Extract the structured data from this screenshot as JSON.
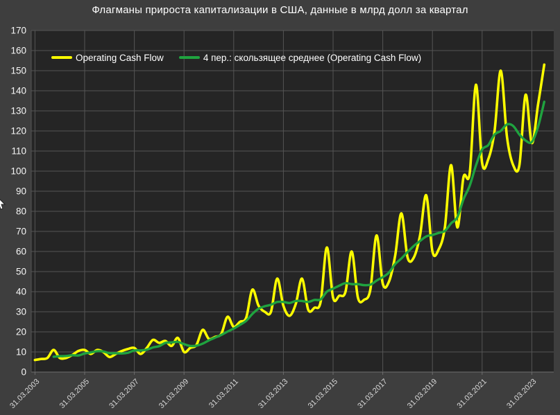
{
  "title": "Флагманы прироста капитализации в США, данные в млрд долл за квартал",
  "legend": [
    {
      "label": "Operating Cash Flow",
      "color": "#FCFC00"
    },
    {
      "label": "4 пер.: скользящее среднее (Operating Cash Flow)",
      "color": "#1FA33F"
    }
  ],
  "colors": {
    "page_background": "#3E3E3E",
    "plot_background": "#252525",
    "gridline": "#555555",
    "axis_line": "#6E6E6E",
    "title_text": "#FFFFFF",
    "y_tick_text": "#F5F5F5",
    "x_tick_text": "#D9D9D9",
    "series_yellow": "#FCFC00",
    "series_green": "#1FA33F"
  },
  "chart_data": {
    "type": "line",
    "title": "Флагманы прироста капитализации в США, данные в млрд долл за квартал",
    "xlabel": "",
    "ylabel": "",
    "ylim": [
      0,
      170
    ],
    "y_tick_step": 10,
    "grid": true,
    "smooth": true,
    "legend_position": "top-left-inside",
    "x_tick_labels": [
      "31.03.2003",
      "31.03.2005",
      "31.03.2007",
      "31.03.2009",
      "31.03.2011",
      "31.03.2013",
      "31.03.2015",
      "31.03.2017",
      "31.03.2019",
      "31.03.2021",
      "31.03.2023"
    ],
    "x_tick_every": 8,
    "x": [
      "31.03.2003",
      "30.06.2003",
      "30.09.2003",
      "31.12.2003",
      "31.03.2004",
      "30.06.2004",
      "30.09.2004",
      "31.12.2004",
      "31.03.2005",
      "30.06.2005",
      "30.09.2005",
      "31.12.2005",
      "31.03.2006",
      "30.06.2006",
      "30.09.2006",
      "31.12.2006",
      "31.03.2007",
      "30.06.2007",
      "30.09.2007",
      "31.12.2007",
      "31.03.2008",
      "30.06.2008",
      "30.09.2008",
      "31.12.2008",
      "31.03.2009",
      "30.06.2009",
      "30.09.2009",
      "31.12.2009",
      "31.03.2010",
      "30.06.2010",
      "30.09.2010",
      "31.12.2010",
      "31.03.2011",
      "30.06.2011",
      "30.09.2011",
      "31.12.2011",
      "31.03.2012",
      "30.06.2012",
      "30.09.2012",
      "31.12.2012",
      "31.03.2013",
      "30.06.2013",
      "30.09.2013",
      "31.12.2013",
      "31.03.2014",
      "30.06.2014",
      "30.09.2014",
      "31.12.2014",
      "31.03.2015",
      "30.06.2015",
      "30.09.2015",
      "31.12.2015",
      "31.03.2016",
      "30.06.2016",
      "30.09.2016",
      "31.12.2016",
      "31.03.2017",
      "30.06.2017",
      "30.09.2017",
      "31.12.2017",
      "31.03.2018",
      "30.06.2018",
      "30.09.2018",
      "31.12.2018",
      "31.03.2019",
      "30.06.2019",
      "30.09.2019",
      "31.12.2019",
      "31.03.2020",
      "30.06.2020",
      "30.09.2020",
      "31.12.2020",
      "31.03.2021",
      "30.06.2021",
      "30.09.2021",
      "31.12.2021",
      "31.03.2022",
      "30.06.2022",
      "30.09.2022",
      "31.12.2022",
      "31.03.2023",
      "30.06.2023",
      "30.09.2023"
    ],
    "series": [
      {
        "name": "Operating Cash Flow",
        "color": "#FCFC00",
        "line_width": 3.6,
        "start_index": 0,
        "values": [
          6,
          6.5,
          7,
          11,
          7,
          7,
          8.5,
          10.5,
          11,
          9,
          11,
          10,
          7.5,
          9,
          10.5,
          11.5,
          12,
          9,
          12,
          16,
          14.5,
          15.5,
          13,
          17,
          10,
          12,
          13.5,
          21,
          16.5,
          17.5,
          19,
          27.5,
          22.5,
          25,
          27,
          41,
          33,
          30,
          30,
          46.5,
          33,
          28,
          34,
          46.5,
          31,
          32,
          35,
          62,
          37,
          38,
          40,
          60,
          37,
          36,
          41,
          68,
          44,
          45,
          58,
          79,
          57,
          57,
          68,
          88,
          60,
          61,
          72,
          103,
          72,
          97,
          99,
          143,
          104,
          106,
          120,
          150,
          117,
          103,
          103,
          138,
          114,
          133,
          153
        ]
      },
      {
        "name": "4 пер.: скользящее среднее (Operating Cash Flow)",
        "color": "#1FA33F",
        "line_width": 3.4,
        "derived": "4-period moving average of Operating Cash Flow",
        "start_index": 3,
        "values": [
          7.63,
          7.88,
          8,
          8.38,
          8.25,
          9.25,
          9.75,
          10.38,
          10.25,
          9.38,
          9.38,
          9.25,
          9.63,
          10.75,
          10.75,
          11.13,
          12.25,
          12.88,
          14.5,
          14.75,
          15,
          13.88,
          13,
          13.13,
          14.13,
          15.75,
          17.13,
          18.5,
          20.13,
          21.63,
          23.5,
          25.5,
          28.88,
          31.5,
          32.75,
          33.5,
          34.88,
          34.88,
          34.38,
          35.38,
          35.38,
          34.88,
          35.88,
          36.13,
          40,
          41.5,
          43,
          44.25,
          43.75,
          43.75,
          43.25,
          43.5,
          45.5,
          47.25,
          49.5,
          53.75,
          56.5,
          59.75,
          62.75,
          65.25,
          67.5,
          68.25,
          69.25,
          70.25,
          74,
          77,
          86,
          92.75,
          102.75,
          110.75,
          113,
          118.25,
          120,
          123.25,
          122.5,
          118.25,
          115.25,
          114.5,
          122,
          134.5
        ]
      }
    ]
  }
}
